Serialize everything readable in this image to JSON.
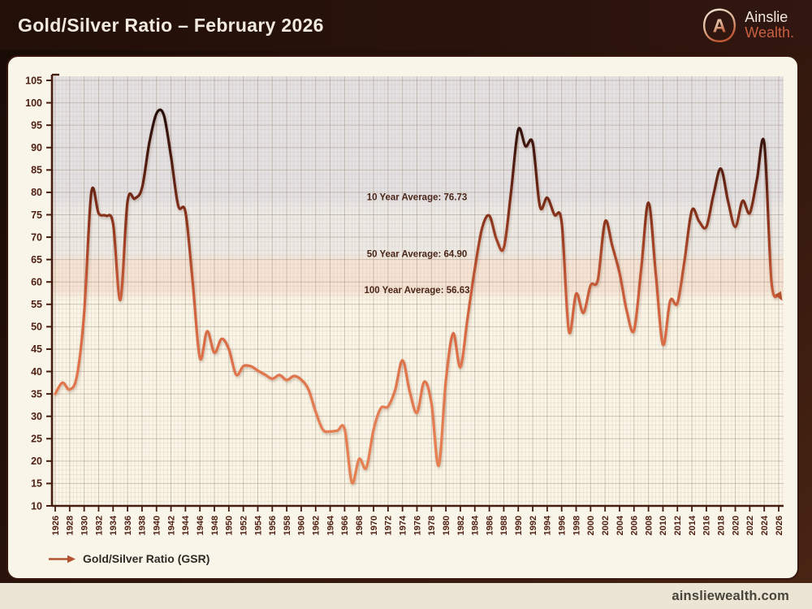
{
  "header": {
    "title": "Gold/Silver Ratio – February 2026",
    "brand": {
      "line1": "Ainslie",
      "line2": "Wealth.",
      "logo_icon": "ainslie-a-emblem"
    }
  },
  "legend": {
    "arrow_icon": "right-arrow-icon",
    "label": "Gold/Silver Ratio (GSR)"
  },
  "footer": {
    "website": "ainsliewealth.com"
  },
  "colors": {
    "header_bg": "#2a130c",
    "card_bg": "#f9f5e9",
    "card_border": "#38180e",
    "footer_bg": "#ebe5d6",
    "axis": "#451d10",
    "tick_label": "#4f2013",
    "annotation_text": "#4a2619",
    "title_text": "#f2ebdd",
    "brand_orange": "#c75f41",
    "legend_arrow": "#b35331",
    "line_low": "#e8824f",
    "line_high": "#140705"
  },
  "chart_data": {
    "type": "line",
    "title": "Gold/Silver Ratio – February 2026",
    "xlabel": "",
    "ylabel": "",
    "ylim": [
      10,
      105
    ],
    "ytick_step": 5,
    "xtick_step": 2,
    "xtick_start": 1926,
    "xtick_end": 2026,
    "grid": true,
    "legend_position": "bottom-left",
    "end_marker": "arrow",
    "x": [
      1926,
      1927,
      1928,
      1929,
      1930,
      1931,
      1932,
      1933,
      1934,
      1935,
      1936,
      1937,
      1938,
      1939,
      1940,
      1941,
      1942,
      1943,
      1944,
      1945,
      1946,
      1947,
      1948,
      1949,
      1950,
      1951,
      1952,
      1953,
      1954,
      1955,
      1956,
      1957,
      1958,
      1959,
      1960,
      1961,
      1962,
      1963,
      1964,
      1965,
      1966,
      1967,
      1968,
      1969,
      1970,
      1971,
      1972,
      1973,
      1974,
      1975,
      1976,
      1977,
      1978,
      1979,
      1980,
      1981,
      1982,
      1983,
      1984,
      1985,
      1986,
      1987,
      1988,
      1989,
      1990,
      1991,
      1992,
      1993,
      1994,
      1995,
      1996,
      1997,
      1998,
      1999,
      2000,
      2001,
      2002,
      2003,
      2004,
      2005,
      2006,
      2007,
      2008,
      2009,
      2010,
      2011,
      2012,
      2013,
      2014,
      2015,
      2016,
      2017,
      2018,
      2019,
      2020,
      2021,
      2022,
      2023,
      2024,
      2025,
      2026
    ],
    "series": [
      {
        "name": "Gold/Silver Ratio (GSR)",
        "values": [
          35.0,
          37.5,
          36.0,
          39.0,
          53.0,
          80.0,
          75.3,
          74.8,
          73.0,
          56.0,
          78.0,
          78.6,
          81.0,
          91.0,
          97.6,
          97.3,
          88.0,
          77.0,
          75.6,
          60.0,
          43.0,
          49.0,
          44.2,
          47.3,
          45.0,
          39.3,
          41.2,
          41.2,
          40.2,
          39.3,
          38.4,
          39.2,
          38.1,
          39.0,
          38.2,
          36.0,
          31.0,
          27.0,
          26.6,
          26.8,
          27.2,
          15.2,
          20.5,
          18.5,
          27.0,
          31.8,
          32.2,
          36.0,
          42.5,
          35.5,
          30.8,
          37.7,
          33.0,
          19.0,
          38.0,
          48.5,
          41.0,
          52.0,
          63.0,
          72.0,
          74.8,
          69.5,
          67.6,
          80.0,
          94.0,
          90.3,
          91.0,
          76.8,
          78.8,
          75.0,
          73.3,
          49.0,
          57.4,
          53.1,
          59.2,
          60.5,
          73.5,
          68.0,
          62.0,
          53.5,
          49.2,
          63.0,
          77.7,
          62.0,
          46.0,
          55.8,
          55.3,
          65.0,
          76.0,
          73.5,
          72.3,
          79.6,
          85.3,
          78.0,
          72.3,
          78.1,
          75.4,
          83.0,
          91.0,
          60.0,
          57.2
        ]
      }
    ],
    "annotations": [
      {
        "label": "10 Year Average: 76.73",
        "x": 1976,
        "y": 79.0
      },
      {
        "label": "50 Year Average: 64.90",
        "x": 1976,
        "y": 66.3
      },
      {
        "label": "100 Year Average: 56.63",
        "x": 1976,
        "y": 58.2
      }
    ],
    "background_bands": [
      {
        "from": 76.73,
        "to": 105.0,
        "color": "#e4e1e3"
      },
      {
        "from": 64.9,
        "to": 76.73,
        "color": "#edeae5"
      },
      {
        "from": 56.63,
        "to": 64.9,
        "color": "#f6e3d4"
      },
      {
        "from": 10.0,
        "to": 56.63,
        "color": "#faf5e6"
      }
    ],
    "line_gradient": [
      {
        "value": 105,
        "color": "#140705"
      },
      {
        "value": 97,
        "color": "#2a100a"
      },
      {
        "value": 88,
        "color": "#4a1a0f"
      },
      {
        "value": 80,
        "color": "#6e2715"
      },
      {
        "value": 74,
        "color": "#8c341c"
      },
      {
        "value": 68,
        "color": "#a54326"
      },
      {
        "value": 62,
        "color": "#bc5232"
      },
      {
        "value": 56,
        "color": "#cd603c"
      },
      {
        "value": 48,
        "color": "#d96b44"
      },
      {
        "value": 40,
        "color": "#e0744b"
      },
      {
        "value": 28,
        "color": "#e57d52"
      },
      {
        "value": 10,
        "color": "#e8824f"
      }
    ]
  }
}
